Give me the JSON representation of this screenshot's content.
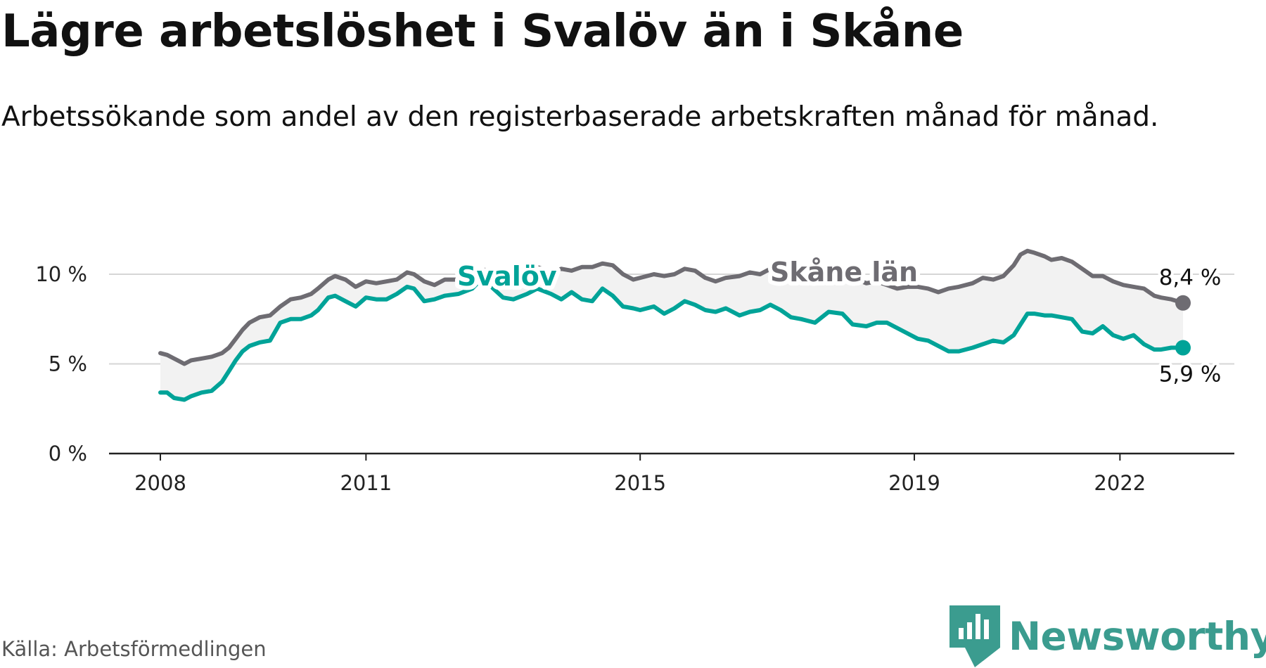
{
  "header": {
    "title": "Lägre arbetslöshet i Svalöv än i Skåne",
    "subtitle": "Arbetssökande som andel av den registerbaserade arbetskraften månad för månad."
  },
  "footer": {
    "source": "Källa: Arbetsförmedlingen",
    "brand": "Newsworthy"
  },
  "colors": {
    "svalov": "#00a398",
    "skane": "#6e6c72",
    "band": "#f2f2f2",
    "grid": "#d6d6d6",
    "axis": "#222222"
  },
  "chart_data": {
    "type": "line",
    "title": "Lägre arbetslöshet i Svalöv än i Skåne",
    "xlabel": "",
    "ylabel": "",
    "xlim": [
      2008.0,
      2022.92
    ],
    "ylim": [
      0,
      10
    ],
    "y_ticks": [
      {
        "value": 0,
        "label": "0 %"
      },
      {
        "value": 5,
        "label": "5 %"
      },
      {
        "value": 10,
        "label": "10 %"
      }
    ],
    "x_ticks": [
      {
        "value": 2008,
        "label": "2008"
      },
      {
        "value": 2011,
        "label": "2011"
      },
      {
        "value": 2015,
        "label": "2015"
      },
      {
        "value": 2019,
        "label": "2019"
      },
      {
        "value": 2022,
        "label": "2022"
      }
    ],
    "series": [
      {
        "name": "Skåne län",
        "label": "Skåne län",
        "end_label": "8,4 %",
        "points": [
          [
            2008.0,
            5.6
          ],
          [
            2008.1,
            5.5
          ],
          [
            2008.2,
            5.3
          ],
          [
            2008.35,
            5.0
          ],
          [
            2008.45,
            5.2
          ],
          [
            2008.6,
            5.3
          ],
          [
            2008.75,
            5.4
          ],
          [
            2008.9,
            5.6
          ],
          [
            2009.0,
            5.9
          ],
          [
            2009.1,
            6.4
          ],
          [
            2009.2,
            6.9
          ],
          [
            2009.3,
            7.3
          ],
          [
            2009.45,
            7.6
          ],
          [
            2009.6,
            7.7
          ],
          [
            2009.75,
            8.2
          ],
          [
            2009.9,
            8.6
          ],
          [
            2010.05,
            8.7
          ],
          [
            2010.2,
            8.9
          ],
          [
            2010.3,
            9.2
          ],
          [
            2010.45,
            9.7
          ],
          [
            2010.55,
            9.9
          ],
          [
            2010.7,
            9.7
          ],
          [
            2010.85,
            9.3
          ],
          [
            2011.0,
            9.6
          ],
          [
            2011.15,
            9.5
          ],
          [
            2011.3,
            9.6
          ],
          [
            2011.45,
            9.7
          ],
          [
            2011.6,
            10.1
          ],
          [
            2011.7,
            10.0
          ],
          [
            2011.85,
            9.6
          ],
          [
            2012.0,
            9.4
          ],
          [
            2012.15,
            9.7
          ],
          [
            2012.35,
            9.7
          ],
          [
            2012.55,
            9.8
          ],
          [
            2012.65,
            10.3
          ],
          [
            2012.8,
            10.2
          ],
          [
            2013.0,
            9.8
          ],
          [
            2013.15,
            10.0
          ],
          [
            2013.35,
            10.1
          ],
          [
            2013.5,
            10.4
          ],
          [
            2013.7,
            10.1
          ],
          [
            2013.85,
            10.3
          ],
          [
            2014.0,
            10.2
          ],
          [
            2014.15,
            10.4
          ],
          [
            2014.3,
            10.4
          ],
          [
            2014.45,
            10.6
          ],
          [
            2014.6,
            10.5
          ],
          [
            2014.75,
            10.0
          ],
          [
            2014.9,
            9.7
          ],
          [
            2015.0,
            9.8
          ],
          [
            2015.2,
            10.0
          ],
          [
            2015.35,
            9.9
          ],
          [
            2015.5,
            10.0
          ],
          [
            2015.65,
            10.3
          ],
          [
            2015.8,
            10.2
          ],
          [
            2015.95,
            9.8
          ],
          [
            2016.1,
            9.6
          ],
          [
            2016.25,
            9.8
          ],
          [
            2016.45,
            9.9
          ],
          [
            2016.6,
            10.1
          ],
          [
            2016.75,
            10.0
          ],
          [
            2016.9,
            10.3
          ],
          [
            2017.05,
            10.2
          ],
          [
            2017.2,
            9.9
          ],
          [
            2017.35,
            9.6
          ],
          [
            2017.55,
            9.6
          ],
          [
            2017.75,
            9.7
          ],
          [
            2017.95,
            10.0
          ],
          [
            2018.1,
            9.8
          ],
          [
            2018.3,
            9.5
          ],
          [
            2018.45,
            9.6
          ],
          [
            2018.6,
            9.4
          ],
          [
            2018.75,
            9.2
          ],
          [
            2018.9,
            9.3
          ],
          [
            2019.05,
            9.3
          ],
          [
            2019.2,
            9.2
          ],
          [
            2019.35,
            9.0
          ],
          [
            2019.5,
            9.2
          ],
          [
            2019.65,
            9.3
          ],
          [
            2019.85,
            9.5
          ],
          [
            2020.0,
            9.8
          ],
          [
            2020.15,
            9.7
          ],
          [
            2020.3,
            9.9
          ],
          [
            2020.45,
            10.5
          ],
          [
            2020.55,
            11.1
          ],
          [
            2020.65,
            11.3
          ],
          [
            2020.75,
            11.2
          ],
          [
            2020.9,
            11.0
          ],
          [
            2021.0,
            10.8
          ],
          [
            2021.15,
            10.9
          ],
          [
            2021.3,
            10.7
          ],
          [
            2021.45,
            10.3
          ],
          [
            2021.6,
            9.9
          ],
          [
            2021.75,
            9.9
          ],
          [
            2021.9,
            9.6
          ],
          [
            2022.05,
            9.4
          ],
          [
            2022.2,
            9.3
          ],
          [
            2022.35,
            9.2
          ],
          [
            2022.5,
            8.8
          ],
          [
            2022.6,
            8.7
          ],
          [
            2022.75,
            8.6
          ],
          [
            2022.92,
            8.4
          ]
        ]
      },
      {
        "name": "Svalöv",
        "label": "Svalöv",
        "end_label": "5,9 %",
        "points": [
          [
            2008.0,
            3.4
          ],
          [
            2008.1,
            3.4
          ],
          [
            2008.2,
            3.1
          ],
          [
            2008.35,
            3.0
          ],
          [
            2008.45,
            3.2
          ],
          [
            2008.6,
            3.4
          ],
          [
            2008.75,
            3.5
          ],
          [
            2008.9,
            4.0
          ],
          [
            2009.0,
            4.6
          ],
          [
            2009.1,
            5.2
          ],
          [
            2009.2,
            5.7
          ],
          [
            2009.3,
            6.0
          ],
          [
            2009.45,
            6.2
          ],
          [
            2009.6,
            6.3
          ],
          [
            2009.75,
            7.3
          ],
          [
            2009.9,
            7.5
          ],
          [
            2010.05,
            7.5
          ],
          [
            2010.2,
            7.7
          ],
          [
            2010.3,
            8.0
          ],
          [
            2010.45,
            8.7
          ],
          [
            2010.55,
            8.8
          ],
          [
            2010.7,
            8.5
          ],
          [
            2010.85,
            8.2
          ],
          [
            2011.0,
            8.7
          ],
          [
            2011.15,
            8.6
          ],
          [
            2011.3,
            8.6
          ],
          [
            2011.45,
            8.9
          ],
          [
            2011.6,
            9.3
          ],
          [
            2011.7,
            9.2
          ],
          [
            2011.85,
            8.5
          ],
          [
            2012.0,
            8.6
          ],
          [
            2012.15,
            8.8
          ],
          [
            2012.35,
            8.9
          ],
          [
            2012.55,
            9.2
          ],
          [
            2012.65,
            9.6
          ],
          [
            2012.8,
            9.4
          ],
          [
            2013.0,
            8.7
          ],
          [
            2013.15,
            8.6
          ],
          [
            2013.35,
            8.9
          ],
          [
            2013.5,
            9.2
          ],
          [
            2013.7,
            8.9
          ],
          [
            2013.85,
            8.6
          ],
          [
            2014.0,
            9.0
          ],
          [
            2014.15,
            8.6
          ],
          [
            2014.3,
            8.5
          ],
          [
            2014.45,
            9.2
          ],
          [
            2014.6,
            8.8
          ],
          [
            2014.75,
            8.2
          ],
          [
            2014.9,
            8.1
          ],
          [
            2015.0,
            8.0
          ],
          [
            2015.2,
            8.2
          ],
          [
            2015.35,
            7.8
          ],
          [
            2015.5,
            8.1
          ],
          [
            2015.65,
            8.5
          ],
          [
            2015.8,
            8.3
          ],
          [
            2015.95,
            8.0
          ],
          [
            2016.1,
            7.9
          ],
          [
            2016.25,
            8.1
          ],
          [
            2016.45,
            7.7
          ],
          [
            2016.6,
            7.9
          ],
          [
            2016.75,
            8.0
          ],
          [
            2016.9,
            8.3
          ],
          [
            2017.05,
            8.0
          ],
          [
            2017.2,
            7.6
          ],
          [
            2017.35,
            7.5
          ],
          [
            2017.55,
            7.3
          ],
          [
            2017.75,
            7.9
          ],
          [
            2017.95,
            7.8
          ],
          [
            2018.1,
            7.2
          ],
          [
            2018.3,
            7.1
          ],
          [
            2018.45,
            7.3
          ],
          [
            2018.6,
            7.3
          ],
          [
            2018.75,
            7.0
          ],
          [
            2018.9,
            6.7
          ],
          [
            2019.05,
            6.4
          ],
          [
            2019.2,
            6.3
          ],
          [
            2019.35,
            6.0
          ],
          [
            2019.5,
            5.7
          ],
          [
            2019.65,
            5.7
          ],
          [
            2019.85,
            5.9
          ],
          [
            2020.0,
            6.1
          ],
          [
            2020.15,
            6.3
          ],
          [
            2020.3,
            6.2
          ],
          [
            2020.45,
            6.6
          ],
          [
            2020.55,
            7.2
          ],
          [
            2020.65,
            7.8
          ],
          [
            2020.75,
            7.8
          ],
          [
            2020.9,
            7.7
          ],
          [
            2021.0,
            7.7
          ],
          [
            2021.15,
            7.6
          ],
          [
            2021.3,
            7.5
          ],
          [
            2021.45,
            6.8
          ],
          [
            2021.6,
            6.7
          ],
          [
            2021.75,
            7.1
          ],
          [
            2021.9,
            6.6
          ],
          [
            2022.05,
            6.4
          ],
          [
            2022.2,
            6.6
          ],
          [
            2022.35,
            6.1
          ],
          [
            2022.5,
            5.8
          ],
          [
            2022.6,
            5.8
          ],
          [
            2022.75,
            5.9
          ],
          [
            2022.92,
            5.9
          ]
        ]
      }
    ]
  }
}
